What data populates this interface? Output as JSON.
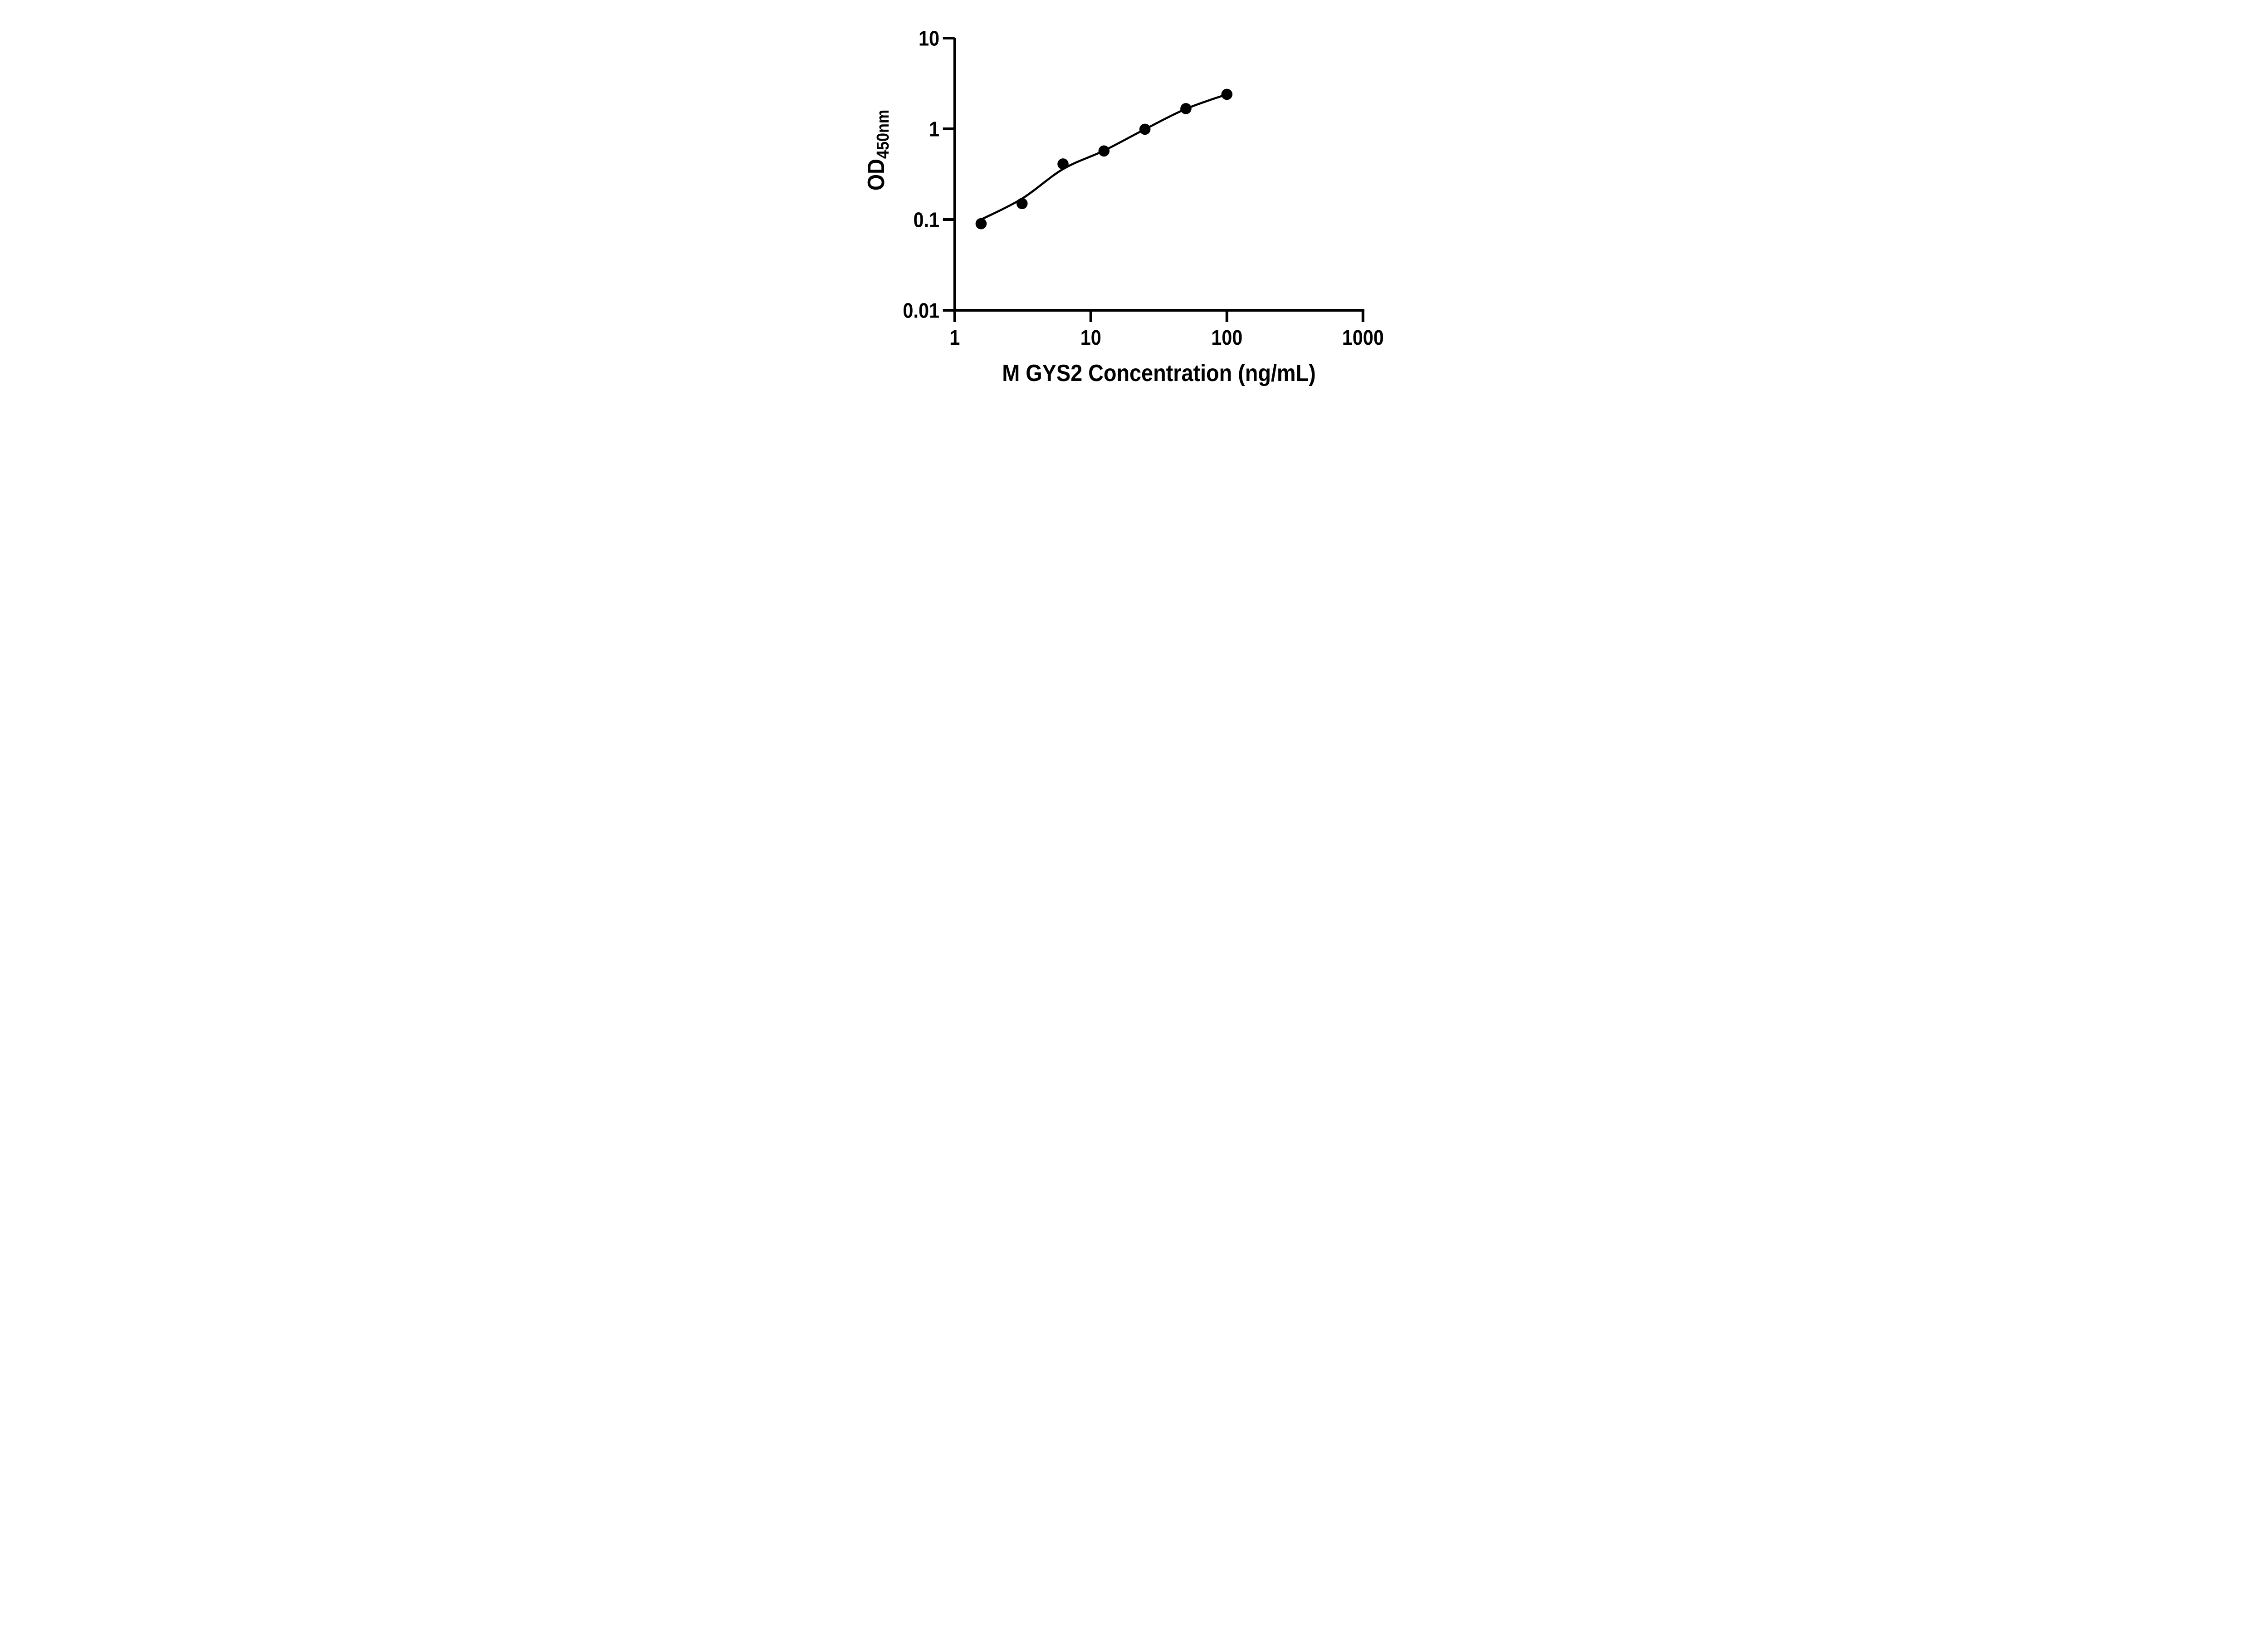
{
  "figure": {
    "background_color": "#ffffff",
    "ink_color": "#000000"
  },
  "chart_data": {
    "type": "scatter",
    "title": "",
    "xlabel": "M GYS2 Concentration (ng/mL)",
    "ylabel": "OD450nm",
    "ylabel_main": "OD",
    "ylabel_subscript": "450nm",
    "x_scale": "log10",
    "y_scale": "log10",
    "xlim": [
      1,
      1000
    ],
    "ylim": [
      0.01,
      10
    ],
    "x_tick_values": [
      1,
      10,
      100,
      1000
    ],
    "x_tick_labels": [
      "1",
      "10",
      "100",
      "1000"
    ],
    "y_tick_values": [
      10,
      1,
      0.1,
      0.01
    ],
    "y_tick_labels": [
      "10",
      "1",
      "0.1",
      "0.01"
    ],
    "grid": false,
    "legend": false,
    "marker_color": "#000000",
    "line_color": "#000000",
    "series": [
      {
        "name": "standard-points",
        "type": "scatter",
        "marker": "filled-circle",
        "x": [
          1.5625,
          3.125,
          6.25,
          12.5,
          25,
          50,
          100
        ],
        "y": [
          0.09,
          0.15,
          0.41,
          0.57,
          0.99,
          1.67,
          2.4
        ]
      },
      {
        "name": "fit-curve",
        "type": "line",
        "x": [
          1.5625,
          3.125,
          6.25,
          12.5,
          25,
          50,
          100
        ],
        "y": [
          0.1,
          0.17,
          0.36,
          0.575,
          0.99,
          1.66,
          2.4
        ]
      }
    ]
  }
}
